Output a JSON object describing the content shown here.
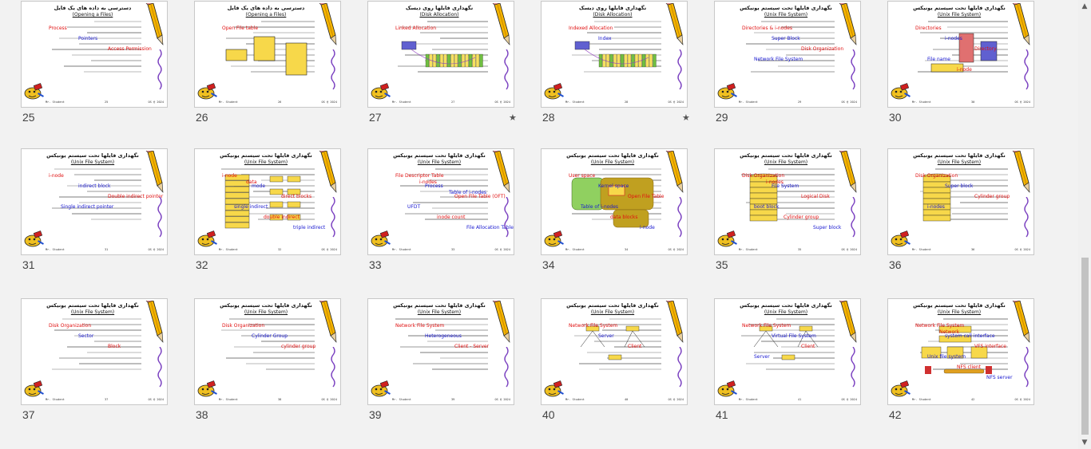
{
  "slides": [
    {
      "num": "25",
      "title": "دسترسی به داده های یک فایل",
      "subtitle": "(Opening a Files)",
      "labels": [
        "Process",
        "Pointers",
        "Access Permission"
      ],
      "star": false
    },
    {
      "num": "26",
      "title": "دسترسی به داده های یک فایل",
      "subtitle": "(Opening a Files)",
      "labels": [
        "Open File table"
      ],
      "star": false
    },
    {
      "num": "27",
      "title": "نگهداری فایلها روی دیسک",
      "subtitle": "(Disk Allocation)",
      "labels": [
        "Linked Allocation"
      ],
      "star": true
    },
    {
      "num": "28",
      "title": "نگهداری فایلها روی دیسک",
      "subtitle": "(Disk Allocation)",
      "labels": [
        "Indexed Allocation",
        "Index"
      ],
      "star": true
    },
    {
      "num": "29",
      "title": "نگهداری فایلها تحت سیستم یونیکس",
      "subtitle": "(Unix File System)",
      "labels": [
        "Directories & i-nodes",
        "Super Block",
        "Disk Organization",
        "Network File System"
      ],
      "star": false
    },
    {
      "num": "30",
      "title": "نگهداری فایلها تحت سیستم یونیکس",
      "subtitle": "(Unix File System)",
      "labels": [
        "Directories",
        "i-nodes",
        "Directory",
        "File name",
        "i-node"
      ],
      "star": false
    },
    {
      "num": "31",
      "title": "نگهداری فایلها تحت سیستم یونیکس",
      "subtitle": "(Unix File System)",
      "labels": [
        "i-node",
        "indirect block",
        "Double indirect pointer",
        "Single indirect pointer"
      ],
      "star": false
    },
    {
      "num": "32",
      "title": "نگهداری فایلها تحت سیستم یونیکس",
      "subtitle": "(Unix File System)",
      "labels": [
        "i-node",
        "mode",
        "direct blocks",
        "single indirect",
        "double indirect",
        "triple indirect",
        "data"
      ],
      "star": false
    },
    {
      "num": "33",
      "title": "نگهداری فایلها تحت سیستم یونیکس",
      "subtitle": "(Unix File System)",
      "labels": [
        "File Descriptor Table",
        "Process",
        "Open File Table (OFT)",
        "UFDT",
        "inode count",
        "File Allocation Table",
        "i-nodes",
        "Table of i-nodes"
      ],
      "star": false
    },
    {
      "num": "34",
      "title": "نگهداری فایلها تحت سیستم یونیکس",
      "subtitle": "(Unix File System)",
      "labels": [
        "User space",
        "Kernel space",
        "Open File Table",
        "Table of i-nodes",
        "data blocks",
        "i-node"
      ],
      "star": false
    },
    {
      "num": "35",
      "title": "نگهداری فایلها تحت سیستم یونیکس",
      "subtitle": "(Unix File System)",
      "labels": [
        "Disk Organization",
        "File System",
        "Logical Disk",
        "boot block",
        "Cylinder group",
        "Super block",
        "i-nodes"
      ],
      "star": false
    },
    {
      "num": "36",
      "title": "نگهداری فایلها تحت سیستم یونیکس",
      "subtitle": "(Unix File System)",
      "labels": [
        "Disk Organization",
        "Super block",
        "Cylinder group",
        "i-nodes"
      ],
      "star": false
    },
    {
      "num": "37",
      "title": "نگهداری فایلها تحت سیستم یونیکس",
      "subtitle": "(Unix File System)",
      "labels": [
        "Disk Organization",
        "Sector",
        "Block"
      ],
      "star": false
    },
    {
      "num": "38",
      "title": "نگهداری فایلها تحت سیستم یونیکس",
      "subtitle": "(Unix File System)",
      "labels": [
        "Disk Organization",
        "Cylinder Group",
        "cylinder group"
      ],
      "star": false
    },
    {
      "num": "39",
      "title": "نگهداری فایلها تحت سیستم یونیکس",
      "subtitle": "(Unix File System)",
      "labels": [
        "Network File System",
        "Heterogeneous",
        "Client - Server"
      ],
      "star": false
    },
    {
      "num": "40",
      "title": "نگهداری فایلها تحت سیستم یونیکس",
      "subtitle": "(Unix File System)",
      "labels": [
        "Network File System",
        "Server",
        "Client"
      ],
      "star": false
    },
    {
      "num": "41",
      "title": "نگهداری فایلها تحت سیستم یونیکس",
      "subtitle": "(Unix File System)",
      "labels": [
        "Network File System",
        "Virtual File System",
        "Client",
        "Server"
      ],
      "star": false
    },
    {
      "num": "42",
      "title": "نگهداری فایلها تحت سیستم یونیکس",
      "subtitle": "(Unix File System)",
      "labels": [
        "Network File System",
        "system call interface",
        "VFS interface",
        "Unix file system",
        "NFS client",
        "NFS server",
        "Network"
      ],
      "star": false
    }
  ],
  "footer": {
    "left": "Mr. Student",
    "mid": "",
    "right": "OS @ 2024"
  },
  "scrollbar": {
    "up": "▲",
    "down": "▼"
  },
  "colors": {
    "accent_red": "#e01010",
    "accent_blue": "#1818d0",
    "box_yellow": "#f7d84a"
  }
}
